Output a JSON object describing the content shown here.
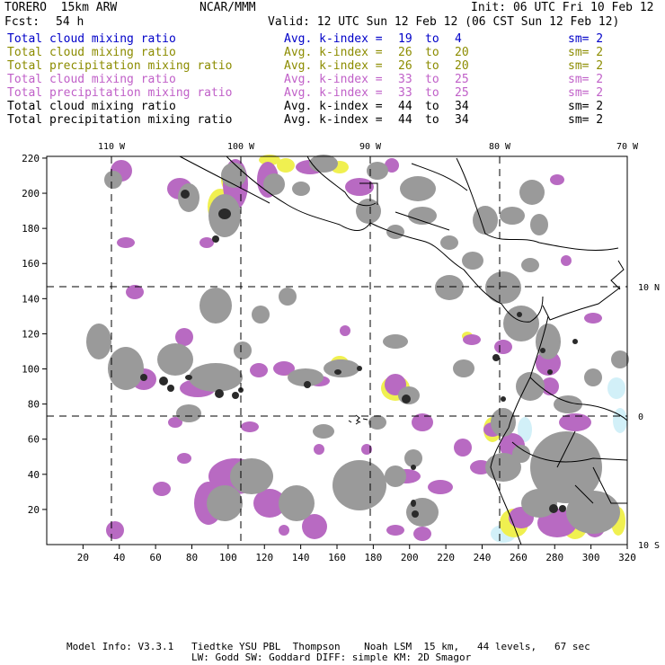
{
  "header": {
    "model": "TORERO  15km ARW",
    "org": "NCAR/MMM",
    "init": "Init: 06 UTC Fri 10 Feb 12",
    "fcst_label": "Fcst:",
    "fcst_value": "54 h",
    "valid": "Valid: 12 UTC Sun 12 Feb 12 (06 CST Sun 12 Feb 12)"
  },
  "legend": [
    {
      "field": "Total cloud mixing ratio",
      "avg": "Avg. k-index =",
      "from": "19",
      "to_word": "to",
      "to": "4",
      "sm": "sm= 2",
      "color": "#0000c8"
    },
    {
      "field": "Total cloud mixing ratio",
      "avg": "Avg. k-index =",
      "from": "26",
      "to_word": "to",
      "to": "20",
      "sm": "sm= 2",
      "color": "#8c8c00"
    },
    {
      "field": "Total precipitation mixing ratio",
      "avg": "Avg. k-index =",
      "from": "26",
      "to_word": "to",
      "to": "20",
      "sm": "sm= 2",
      "color": "#8c8c00"
    },
    {
      "field": "Total cloud mixing ratio",
      "avg": "Avg. k-index =",
      "from": "33",
      "to_word": "to",
      "to": "25",
      "sm": "sm= 2",
      "color": "#c060c8"
    },
    {
      "field": "Total precipitation mixing ratio",
      "avg": "Avg. k-index =",
      "from": "33",
      "to_word": "to",
      "to": "25",
      "sm": "sm= 2",
      "color": "#c060c8"
    },
    {
      "field": "Total cloud mixing ratio",
      "avg": "Avg. k-index =",
      "from": "44",
      "to_word": "to",
      "to": "34",
      "sm": "sm= 2",
      "color": "#000000"
    },
    {
      "field": "Total precipitation mixing ratio",
      "avg": "Avg. k-index =",
      "from": "44",
      "to_word": "to",
      "to": "34",
      "sm": "sm= 2",
      "color": "#000000"
    }
  ],
  "map": {
    "lon_labels": [
      "110 W",
      "100 W",
      "90 W",
      "80 W",
      "70 W"
    ],
    "lat_labels": [
      "10 N",
      "0",
      "10 S"
    ],
    "x_ticks": [
      "20",
      "40",
      "60",
      "80",
      "100",
      "120",
      "140",
      "160",
      "180",
      "200",
      "220",
      "240",
      "260",
      "280",
      "300",
      "320"
    ],
    "y_ticks": [
      "220",
      "200",
      "180",
      "160",
      "140",
      "120",
      "100",
      "80",
      "60",
      "40",
      "20"
    ],
    "colors": {
      "cloud_gray": "#9a9a9a",
      "dark_core": "#2a2a2a",
      "purple": "#b86ac2",
      "yellow": "#f0f050",
      "light_blue": "#d2f0f8"
    }
  },
  "footer": {
    "line1": "Model Info: V3.3.1   Tiedtke YSU PBL  Thompson    Noah LSM  15 km,   44 levels,   67 sec",
    "line2": "LW: Godd SW: Goddard DIFF: simple KM: 2D Smagor"
  }
}
